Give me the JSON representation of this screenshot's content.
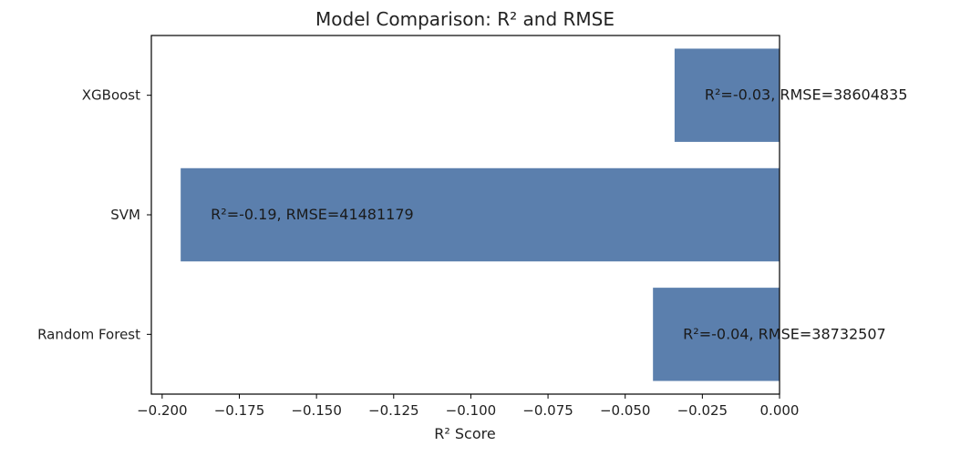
{
  "chart_data": {
    "type": "bar",
    "orientation": "horizontal",
    "title": "Model Comparison: R² and RMSE",
    "xlabel": "R² Score",
    "ylabel": "",
    "categories": [
      "XGBoost",
      "SVM",
      "Random Forest"
    ],
    "values": [
      -0.034,
      -0.194,
      -0.041
    ],
    "data_labels": [
      "R²=-0.03, RMSE=38604835",
      "R²=-0.19, RMSE=41481179",
      "R²=-0.04, RMSE=38732507"
    ],
    "xlim": [
      -0.2035,
      0.0
    ],
    "xticks": [
      -0.2,
      -0.175,
      -0.15,
      -0.125,
      -0.1,
      -0.075,
      -0.05,
      -0.025,
      0.0
    ],
    "xtick_labels": [
      "−0.200",
      "−0.175",
      "−0.150",
      "−0.125",
      "−0.100",
      "−0.075",
      "−0.050",
      "−0.025",
      "0.000"
    ],
    "grid": false,
    "bar_color": "#5b7fad",
    "legend": "none"
  }
}
